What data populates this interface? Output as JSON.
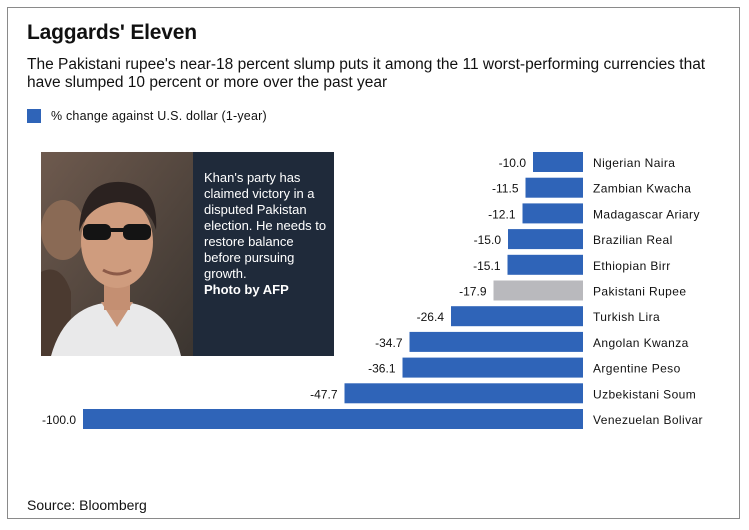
{
  "title": "Laggards' Eleven",
  "subtitle": "The Pakistani rupee's near-18 percent slump puts it among the 11 worst-performing currencies that have slumped 10 percent or more over the past year",
  "legend": {
    "label": "% change against U.S. dollar (1-year)"
  },
  "photo_caption": {
    "text": "Khan's party has claimed victory in a disputed Pakistan election. He needs to restore balance before pursuing growth.",
    "credit": "Photo by AFP"
  },
  "source": "Source: Bloomberg",
  "colors": {
    "bar": "#2f64b8",
    "highlight": "#b9b9bd",
    "panel": "#1f2a3a"
  },
  "chart_data": {
    "type": "bar",
    "orientation": "horizontal",
    "categories": [
      "Nigerian Naira",
      "Zambian Kwacha",
      "Madagascar Ariary",
      "Brazilian Real",
      "Ethiopian Birr",
      "Pakistani Rupee",
      "Turkish Lira",
      "Angolan Kwanza",
      "Argentine Peso",
      "Uzbekistani Soum",
      "Venezuelan Bolivar"
    ],
    "values": [
      -10.0,
      -11.5,
      -12.1,
      -15.0,
      -15.1,
      -17.9,
      -26.4,
      -34.7,
      -36.1,
      -47.7,
      -100.0
    ],
    "value_labels": [
      "-10.0",
      "-11.5",
      "-12.1",
      "-15.0",
      "-15.1",
      "-17.9",
      "-26.4",
      "-34.7",
      "-36.1",
      "-47.7",
      "-100.0"
    ],
    "highlight": "Pakistani Rupee",
    "xlim": [
      -100,
      0
    ],
    "legend": "top-left",
    "grid": false
  }
}
